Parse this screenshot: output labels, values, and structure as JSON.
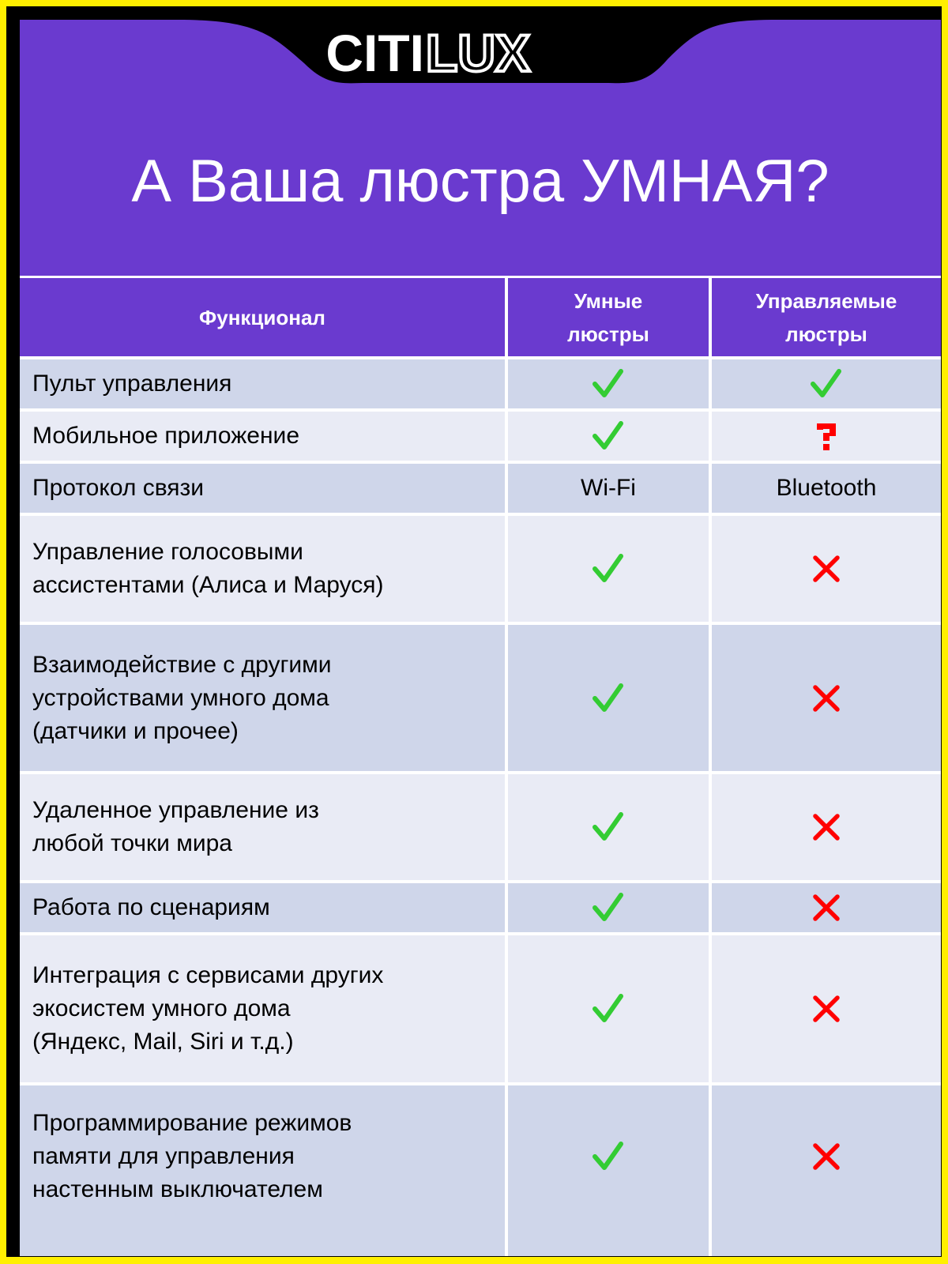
{
  "brand": {
    "logo_text": "CITILUX",
    "logo_fill_part": "CITI",
    "logo_outline_part": "LUX"
  },
  "colors": {
    "border_outer": "#ffef00",
    "border_inner": "#000000",
    "header_bg": "#6a3acf",
    "row_dark": "#cfd6ea",
    "row_light": "#e9ebf5",
    "check": "#33cc33",
    "cross": "#ff0000",
    "question": "#ff0000"
  },
  "title": "А Ваша люстра УМНАЯ?",
  "table": {
    "headers": [
      {
        "lines": [
          "Функционал"
        ]
      },
      {
        "lines": [
          "Умные",
          "люстры"
        ]
      },
      {
        "lines": [
          "Управляемые",
          "люстры"
        ]
      }
    ],
    "rows": [
      {
        "feature": [
          "Пульт управления"
        ],
        "smart": {
          "type": "check"
        },
        "managed": {
          "type": "check"
        }
      },
      {
        "feature": [
          "Мобильное приложение"
        ],
        "smart": {
          "type": "check"
        },
        "managed": {
          "type": "question"
        }
      },
      {
        "feature": [
          "Протокол связи"
        ],
        "smart": {
          "type": "text",
          "text": "Wi-Fi"
        },
        "managed": {
          "type": "text",
          "text": "Bluetooth"
        }
      },
      {
        "feature": [
          "Управление голосовыми",
          "ассистентами (Алиса и Маруся)"
        ],
        "smart": {
          "type": "check"
        },
        "managed": {
          "type": "cross"
        }
      },
      {
        "feature": [
          "Взаимодействие с другими",
          "устройствами умного дома",
          "(датчики и прочее)"
        ],
        "smart": {
          "type": "check"
        },
        "managed": {
          "type": "cross"
        }
      },
      {
        "feature": [
          "Удаленное управление из",
          "любой точки мира"
        ],
        "smart": {
          "type": "check"
        },
        "managed": {
          "type": "cross"
        }
      },
      {
        "feature": [
          "Работа по сценариям"
        ],
        "smart": {
          "type": "check"
        },
        "managed": {
          "type": "cross"
        }
      },
      {
        "feature": [
          "Интеграция с сервисами других",
          "экосистем умного дома",
          "(Яндекс, Mail, Siri и т.д.)"
        ],
        "smart": {
          "type": "check"
        },
        "managed": {
          "type": "cross"
        }
      },
      {
        "feature": [
          "Программирование режимов",
          "памяти для управления",
          "настенным выключателем"
        ],
        "smart": {
          "type": "check"
        },
        "managed": {
          "type": "cross"
        }
      }
    ]
  }
}
